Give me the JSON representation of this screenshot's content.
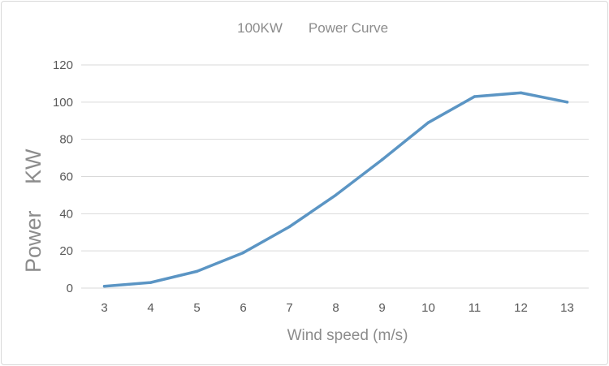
{
  "chart_data": {
    "type": "line",
    "title_left": "100KW",
    "title_right": "Power Curve",
    "xlabel": "Wind speed (m/s)",
    "ylabel_left": "Power",
    "ylabel_right": "KW",
    "x": [
      3,
      4,
      5,
      6,
      7,
      8,
      9,
      10,
      11,
      12,
      13
    ],
    "series": [
      {
        "values": [
          1,
          3,
          9,
          19,
          33,
          50,
          69,
          89,
          103,
          105,
          100
        ]
      }
    ],
    "ylim": [
      0,
      120
    ],
    "yticks": [
      0,
      20,
      40,
      60,
      80,
      100,
      120
    ],
    "grid": true,
    "legend": "none",
    "colors": {
      "line": "#5b95c4",
      "grid": "#d9d9d9",
      "title": "#8c8c8c",
      "tick": "#595959"
    }
  }
}
